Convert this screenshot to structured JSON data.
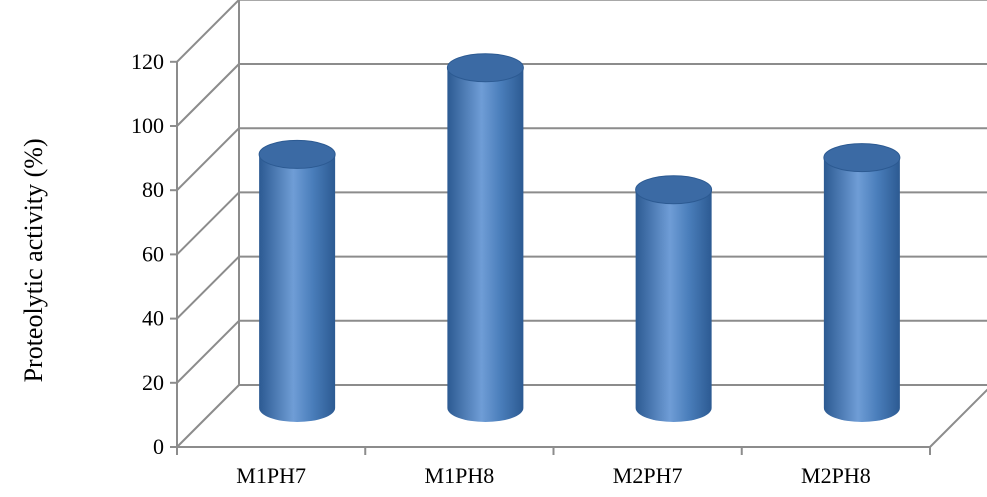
{
  "chart_data": {
    "type": "bar",
    "style": "3d-cylinder",
    "categories": [
      "M1PH7",
      "M1PH8",
      "M2PH7",
      "M2PH8"
    ],
    "series": [
      {
        "values": [
          79,
          106,
          68,
          78
        ]
      }
    ],
    "ylabel": "Proteolytic activity (%)",
    "xlabel": "",
    "ylim": [
      0,
      120
    ],
    "yticks": [
      0,
      20,
      40,
      60,
      80,
      100,
      120
    ],
    "grid": true,
    "legend": "none",
    "colors": {
      "bar_main": "#4A7EBB",
      "bar_light": "#8FB4E3",
      "bar_dark": "#2C5A92",
      "bar_top": "#3B6AA4",
      "grid": "#8C8C8C"
    }
  }
}
